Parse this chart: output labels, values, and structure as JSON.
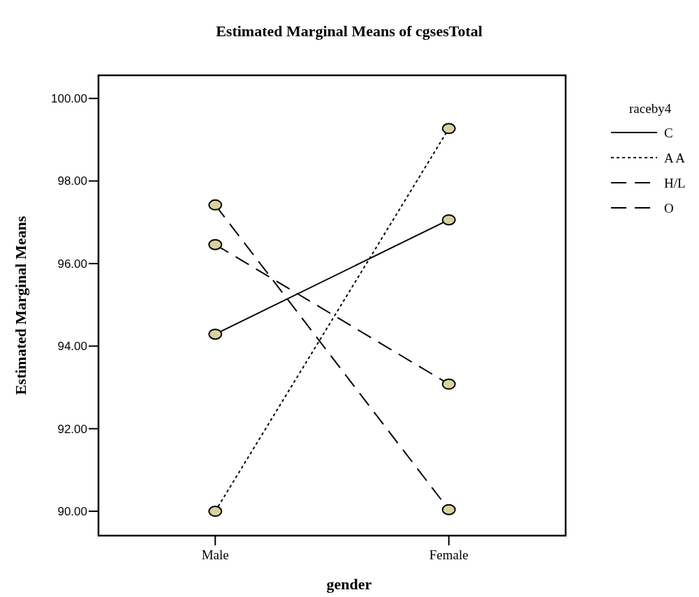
{
  "chart_data": {
    "type": "line",
    "title": "Estimated Marginal Means of cgsesTotal",
    "xlabel": "gender",
    "ylabel": "Estimated Marginal Means",
    "legend_title": "raceby4",
    "legend": "right",
    "marker": "circle",
    "categories": [
      "Male",
      "Female"
    ],
    "ylim": [
      89.41,
      100.56
    ],
    "yticks": [
      {
        "value": 90,
        "label": "90.00"
      },
      {
        "value": 92,
        "label": "92.00"
      },
      {
        "value": 94,
        "label": "94.00"
      },
      {
        "value": 96,
        "label": "96.00"
      },
      {
        "value": 98,
        "label": "98.00"
      },
      {
        "value": 100,
        "label": "100.00"
      }
    ],
    "series": [
      {
        "name": "C",
        "color": "#000000",
        "line_style": "solid",
        "values": [
          94.29,
          97.06
        ]
      },
      {
        "name": "A A",
        "color": "#000000",
        "line_style": "dotted",
        "values": [
          90.0,
          99.27
        ]
      },
      {
        "name": "H/L",
        "color": "#000000",
        "line_style": "dashed",
        "values": [
          97.42,
          90.04
        ]
      },
      {
        "name": "O",
        "color": "#000000",
        "line_style": "dashed",
        "values": [
          96.46,
          93.08
        ]
      }
    ]
  }
}
